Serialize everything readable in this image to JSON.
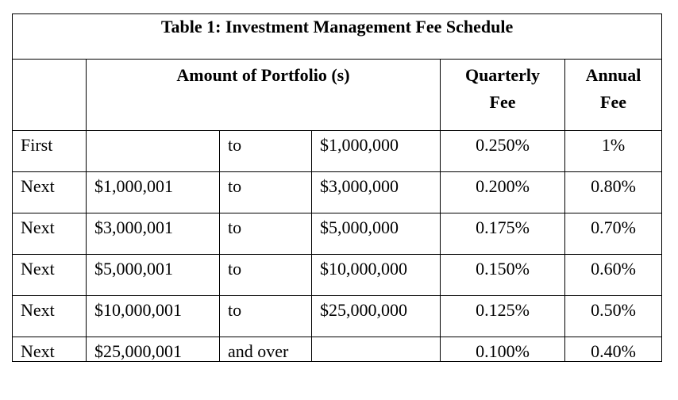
{
  "title": "Table 1: Investment Management Fee Schedule",
  "headers": {
    "amount": "Amount of  Portfolio (s)",
    "quarterly_line1": "Quarterly",
    "quarterly_line2": "Fee",
    "annual_line1": "Annual",
    "annual_line2": "Fee"
  },
  "rows": [
    {
      "tier": "First",
      "from": "",
      "sep": "to",
      "upto": "$1,000,000",
      "quarterly": "0.250%",
      "annual": "1%"
    },
    {
      "tier": "Next",
      "from": "$1,000,001",
      "sep": "to",
      "upto": "$3,000,000",
      "quarterly": "0.200%",
      "annual": "0.80%"
    },
    {
      "tier": "Next",
      "from": "$3,000,001",
      "sep": "to",
      "upto": "$5,000,000",
      "quarterly": "0.175%",
      "annual": "0.70%"
    },
    {
      "tier": "Next",
      "from": "$5,000,001",
      "sep": "to",
      "upto": "$10,000,000",
      "quarterly": "0.150%",
      "annual": "0.60%"
    },
    {
      "tier": "Next",
      "from": "$10,000,001",
      "sep": "to",
      "upto": "$25,000,000",
      "quarterly": "0.125%",
      "annual": "0.50%"
    },
    {
      "tier": "Next",
      "from": "$25,000,001",
      "sep": "and over",
      "upto": "",
      "quarterly": "0.100%",
      "annual": "0.40%"
    }
  ]
}
